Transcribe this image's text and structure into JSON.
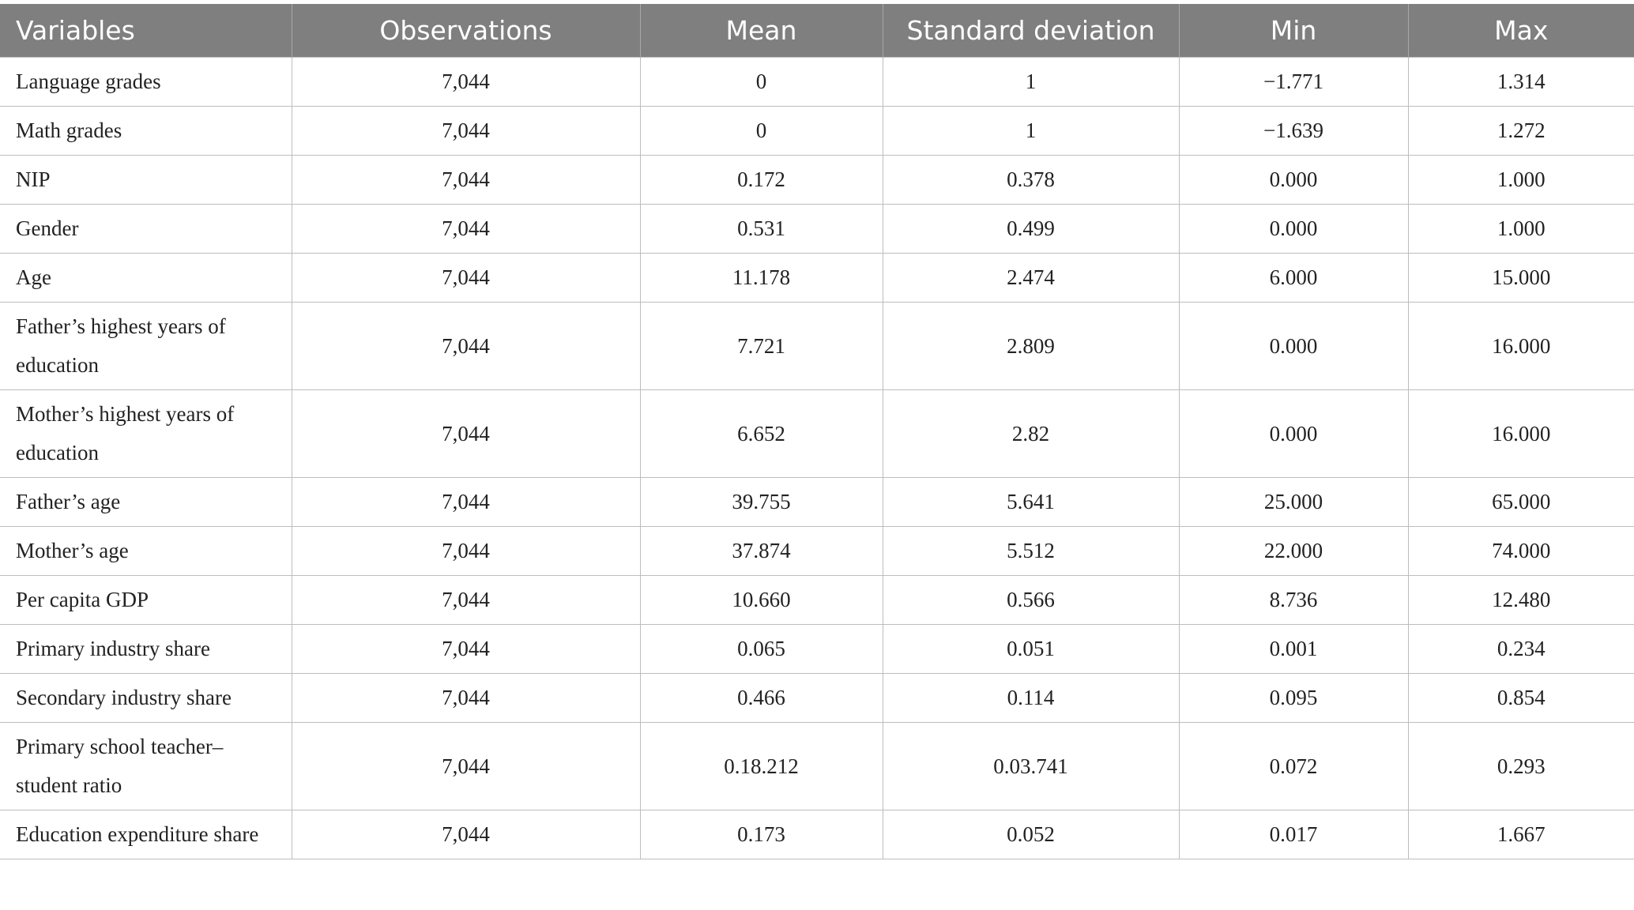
{
  "table": {
    "header": [
      "Variables",
      "Observations",
      "Mean",
      "Standard deviation",
      "Min",
      "Max"
    ],
    "rows": [
      [
        "Language grades",
        "7,044",
        "0",
        "1",
        "−1.771",
        "1.314"
      ],
      [
        "Math grades",
        "7,044",
        "0",
        "1",
        "−1.639",
        "1.272"
      ],
      [
        "NIP",
        "7,044",
        "0.172",
        "0.378",
        "0.000",
        "1.000"
      ],
      [
        "Gender",
        "7,044",
        "0.531",
        "0.499",
        "0.000",
        "1.000"
      ],
      [
        "Age",
        "7,044",
        "11.178",
        "2.474",
        "6.000",
        "15.000"
      ],
      [
        "Father’s highest years of education",
        "7,044",
        "7.721",
        "2.809",
        "0.000",
        "16.000"
      ],
      [
        "Mother’s highest years of education",
        "7,044",
        "6.652",
        "2.82",
        "0.000",
        "16.000"
      ],
      [
        "Father’s age",
        "7,044",
        "39.755",
        "5.641",
        "25.000",
        "65.000"
      ],
      [
        "Mother’s age",
        "7,044",
        "37.874",
        "5.512",
        "22.000",
        "74.000"
      ],
      [
        "Per capita GDP",
        "7,044",
        "10.660",
        "0.566",
        "8.736",
        "12.480"
      ],
      [
        "Primary industry share",
        "7,044",
        "0.065",
        "0.051",
        "0.001",
        "0.234"
      ],
      [
        "Secondary industry share",
        "7,044",
        "0.466",
        "0.114",
        "0.095",
        "0.854"
      ],
      [
        "Primary school teacher–student ratio",
        "7,044",
        "0.18.212",
        "0.03.741",
        "0.072",
        "0.293"
      ],
      [
        "Education expenditure share",
        "7,044",
        "0.173",
        "0.052",
        "0.017",
        "1.667"
      ]
    ]
  }
}
